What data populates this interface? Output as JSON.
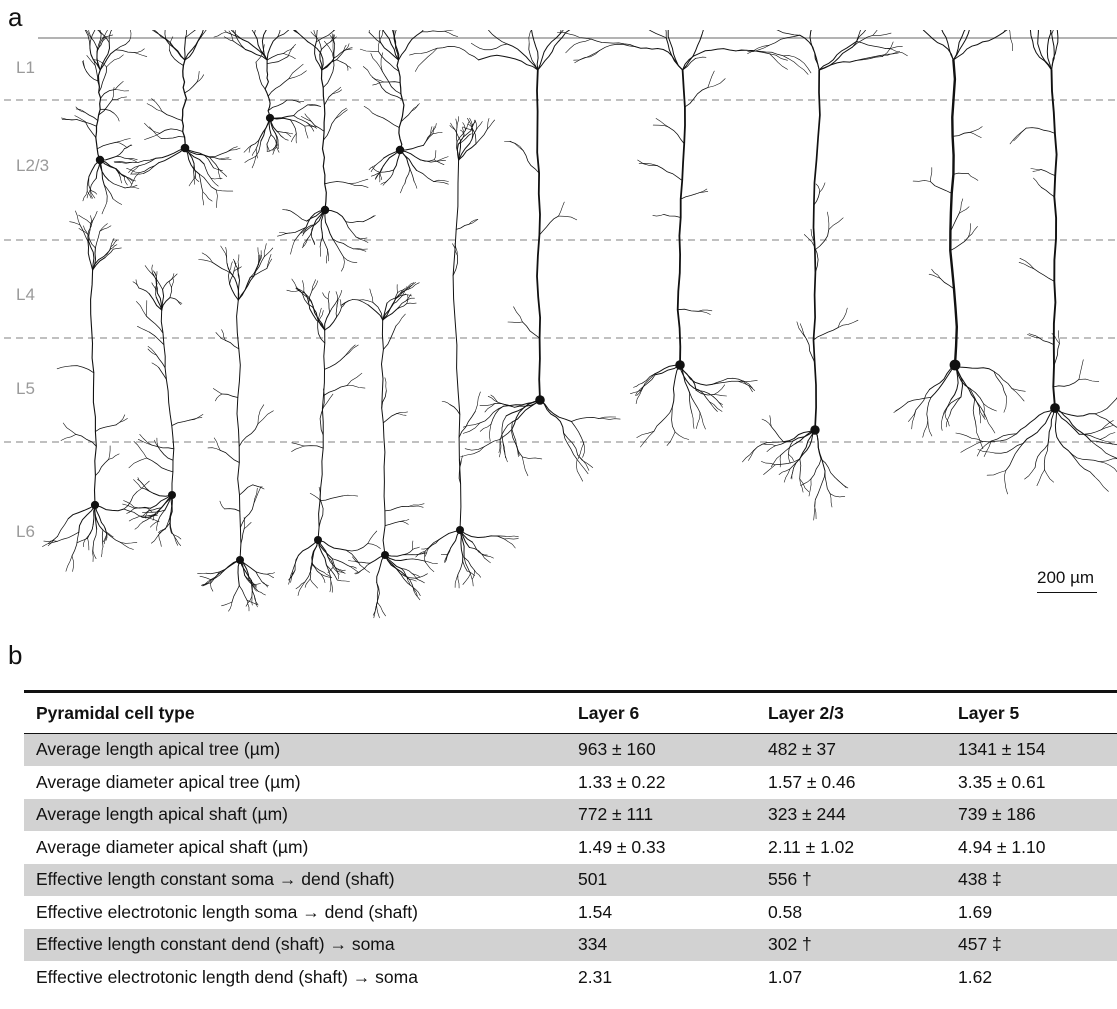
{
  "figure": {
    "panel_a_label": "a",
    "panel_b_label": "b",
    "layers": [
      "L1",
      "L2/3",
      "L4",
      "L5",
      "L6"
    ],
    "scale_bar": "200 µm",
    "line_color": "#111111",
    "boundary_color": "#9a9a9a"
  },
  "table": {
    "headers": [
      "Pyramidal cell type",
      "Layer 6",
      "Layer 2/3",
      "Layer 5"
    ],
    "rows": [
      [
        "Average length apical tree (µm)",
        "963 ± 160",
        "482 ± 37",
        "1341 ± 154"
      ],
      [
        "Average diameter apical tree (µm)",
        "1.33 ± 0.22",
        "1.57 ± 0.46",
        "3.35 ± 0.61"
      ],
      [
        "Average length apical shaft (µm)",
        "772 ± 111",
        "323 ± 244",
        "739 ± 186"
      ],
      [
        "Average diameter apical shaft (µm)",
        "1.49 ± 0.33",
        "2.11 ± 1.02",
        "4.94 ± 1.10"
      ],
      [
        "Effective length constant soma → dend (shaft)",
        "501",
        "556 †",
        "438 ‡"
      ],
      [
        "Effective electrotonic length soma → dend (shaft)",
        "1.54",
        "0.58",
        "1.69"
      ],
      [
        "Effective length constant dend (shaft) → soma",
        "334",
        "302 †",
        "457 ‡"
      ],
      [
        "Effective electrotonic length dend (shaft) → soma",
        "2.31",
        "1.07",
        "1.62"
      ]
    ],
    "shade_color": "#d2d2d2"
  }
}
